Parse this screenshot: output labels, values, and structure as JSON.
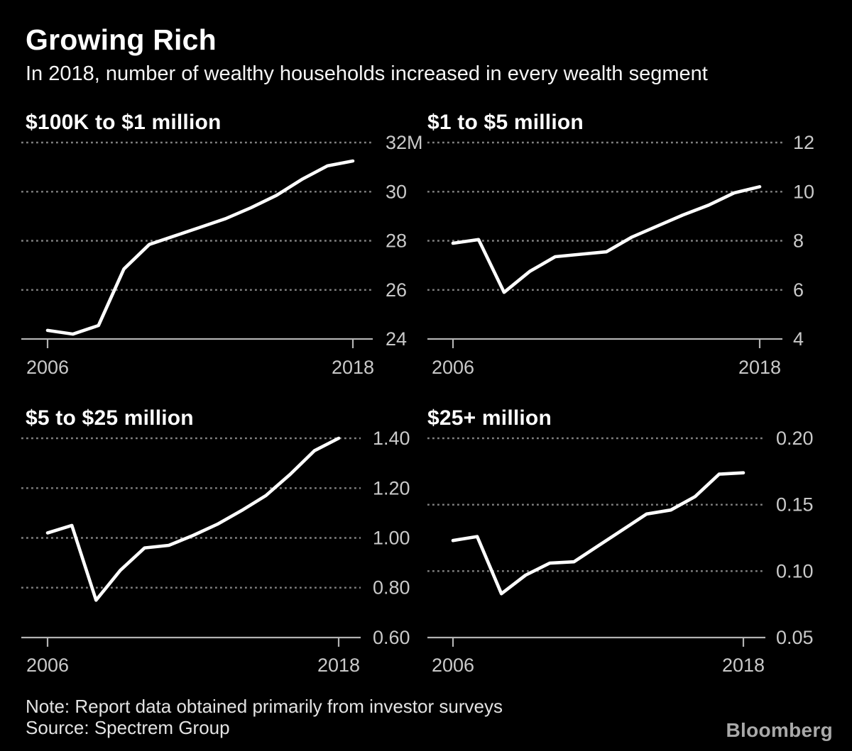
{
  "page": {
    "title": "Growing Rich",
    "subtitle": "In 2018, number of wealthy households increased in every wealth segment",
    "note": "Note: Report data obtained primarily from investor surveys",
    "source": "Source: Spectrem Group",
    "brand": "Bloomberg"
  },
  "colors": {
    "background": "#000000",
    "series_line": "#ffffff",
    "gridline": "#828282",
    "axis": "#b3b3b3",
    "axis_label": "#c9c9c9",
    "heading_text": "#ffffff",
    "footer_text": "#e3e3e3",
    "brand_text": "#a9a9a9"
  },
  "chart_data": [
    {
      "type": "line",
      "title": "$100K to $1 million",
      "x": [
        2006,
        2007,
        2008,
        2009,
        2010,
        2011,
        2012,
        2013,
        2014,
        2015,
        2016,
        2017,
        2018
      ],
      "values": [
        24.35,
        24.2,
        24.55,
        26.85,
        27.85,
        28.2,
        28.55,
        28.9,
        29.35,
        29.85,
        30.5,
        31.05,
        31.25
      ],
      "ylim": [
        24,
        32
      ],
      "yticks": [
        {
          "value": 24,
          "label": "24"
        },
        {
          "value": 26,
          "label": "26"
        },
        {
          "value": 28,
          "label": "28"
        },
        {
          "value": 30,
          "label": "30"
        },
        {
          "value": 32,
          "label": "32M"
        }
      ],
      "xticks": [
        {
          "value": 2006,
          "label": "2006"
        },
        {
          "value": 2018,
          "label": "2018"
        }
      ],
      "grid": "dotted-horizontal",
      "legend": "none"
    },
    {
      "type": "line",
      "title": "$1 to $5 million",
      "x": [
        2006,
        2007,
        2008,
        2009,
        2010,
        2011,
        2012,
        2013,
        2014,
        2015,
        2016,
        2017,
        2018
      ],
      "values": [
        7.9,
        8.05,
        5.9,
        6.75,
        7.35,
        7.45,
        7.55,
        8.15,
        8.6,
        9.05,
        9.45,
        9.95,
        10.2
      ],
      "ylim": [
        4,
        12
      ],
      "yticks": [
        {
          "value": 4,
          "label": "4"
        },
        {
          "value": 6,
          "label": "6"
        },
        {
          "value": 8,
          "label": "8"
        },
        {
          "value": 10,
          "label": "10"
        },
        {
          "value": 12,
          "label": "12"
        }
      ],
      "xticks": [
        {
          "value": 2006,
          "label": "2006"
        },
        {
          "value": 2018,
          "label": "2018"
        }
      ],
      "grid": "dotted-horizontal",
      "legend": "none"
    },
    {
      "type": "line",
      "title": "$5 to $25 million",
      "x": [
        2006,
        2007,
        2008,
        2009,
        2010,
        2011,
        2012,
        2013,
        2014,
        2015,
        2016,
        2017,
        2018
      ],
      "values": [
        1.02,
        1.05,
        0.75,
        0.87,
        0.96,
        0.97,
        1.01,
        1.055,
        1.11,
        1.17,
        1.255,
        1.35,
        1.4
      ],
      "ylim": [
        0.6,
        1.4
      ],
      "yticks": [
        {
          "value": 0.6,
          "label": "0.60"
        },
        {
          "value": 0.8,
          "label": "0.80"
        },
        {
          "value": 1.0,
          "label": "1.00"
        },
        {
          "value": 1.2,
          "label": "1.20"
        },
        {
          "value": 1.4,
          "label": "1.40"
        }
      ],
      "xticks": [
        {
          "value": 2006,
          "label": "2006"
        },
        {
          "value": 2018,
          "label": "2018"
        }
      ],
      "grid": "dotted-horizontal",
      "legend": "none"
    },
    {
      "type": "line",
      "title": "$25+ million",
      "x": [
        2006,
        2007,
        2008,
        2009,
        2010,
        2011,
        2012,
        2013,
        2014,
        2015,
        2016,
        2017,
        2018
      ],
      "values": [
        0.123,
        0.126,
        0.083,
        0.097,
        0.106,
        0.107,
        0.119,
        0.131,
        0.143,
        0.146,
        0.156,
        0.173,
        0.174
      ],
      "ylim": [
        0.05,
        0.2
      ],
      "yticks": [
        {
          "value": 0.05,
          "label": "0.05"
        },
        {
          "value": 0.1,
          "label": "0.10"
        },
        {
          "value": 0.15,
          "label": "0.15"
        },
        {
          "value": 0.2,
          "label": "0.20"
        }
      ],
      "xticks": [
        {
          "value": 2006,
          "label": "2006"
        },
        {
          "value": 2018,
          "label": "2018"
        }
      ],
      "grid": "dotted-horizontal",
      "legend": "none"
    }
  ]
}
